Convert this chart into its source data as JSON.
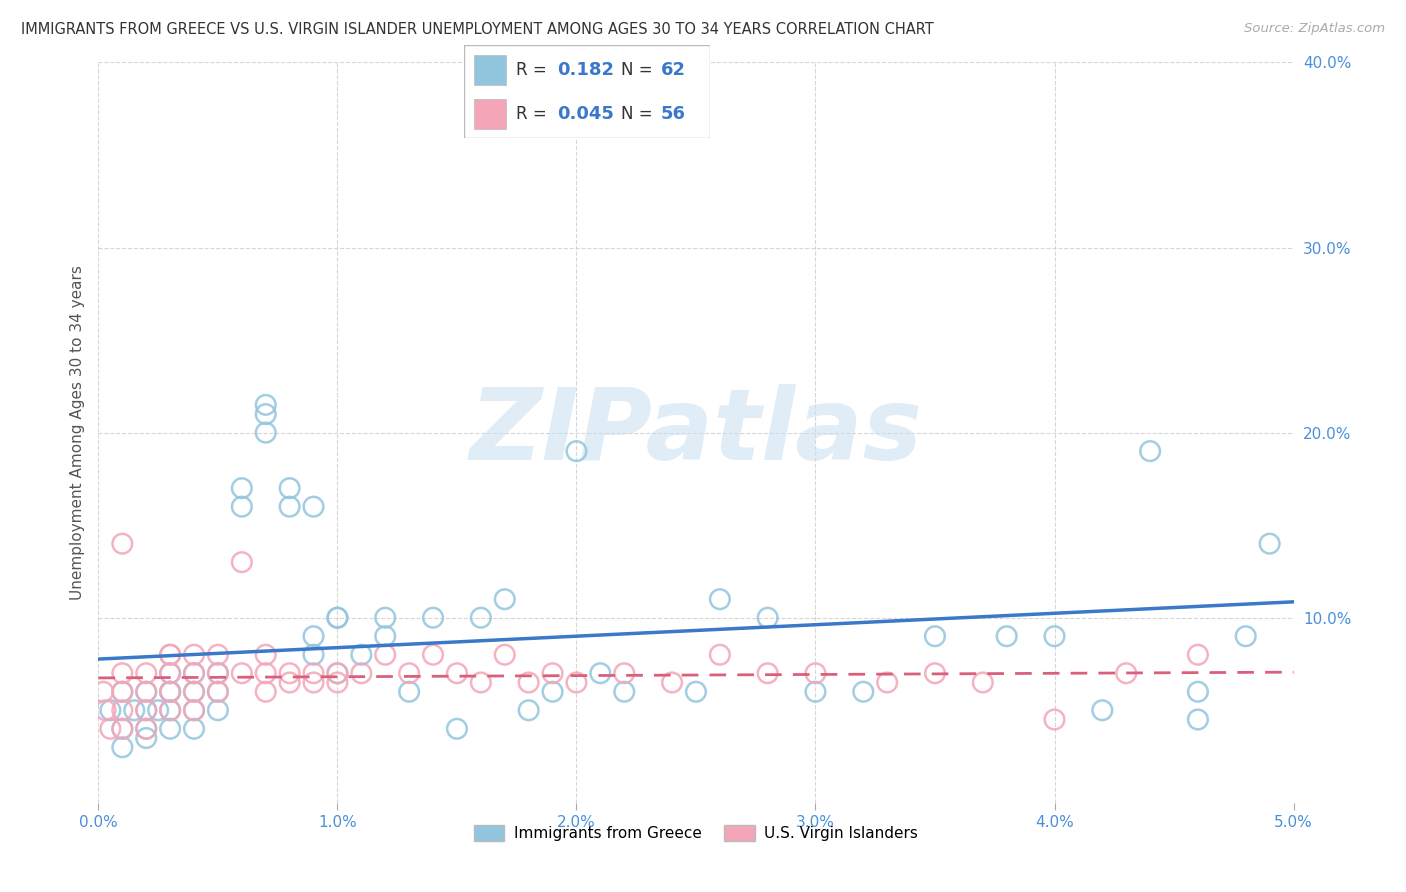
{
  "title": "IMMIGRANTS FROM GREECE VS U.S. VIRGIN ISLANDER UNEMPLOYMENT AMONG AGES 30 TO 34 YEARS CORRELATION CHART",
  "source": "Source: ZipAtlas.com",
  "ylabel": "Unemployment Among Ages 30 to 34 years",
  "xlim": [
    0.0,
    0.05
  ],
  "ylim": [
    0.0,
    0.4
  ],
  "xticks": [
    0.0,
    0.01,
    0.02,
    0.03,
    0.04,
    0.05
  ],
  "xticklabels": [
    "0.0%",
    "1.0%",
    "2.0%",
    "3.0%",
    "4.0%",
    "5.0%"
  ],
  "yticks": [
    0.0,
    0.1,
    0.2,
    0.3,
    0.4
  ],
  "yticklabels_right": [
    "",
    "10.0%",
    "20.0%",
    "30.0%",
    "40.0%"
  ],
  "blue_R": 0.182,
  "blue_N": 62,
  "pink_R": 0.045,
  "pink_N": 56,
  "blue_color": "#92c5de",
  "pink_color": "#f4a6b8",
  "blue_line_color": "#3a78c9",
  "pink_line_color": "#d9607a",
  "tick_color": "#4a90d9",
  "legend_label_blue": "Immigrants from Greece",
  "legend_label_pink": "U.S. Virgin Islanders",
  "watermark": "ZIPatlas",
  "blue_x": [
    0.0005,
    0.001,
    0.001,
    0.001,
    0.0015,
    0.002,
    0.002,
    0.002,
    0.002,
    0.0025,
    0.003,
    0.003,
    0.003,
    0.003,
    0.003,
    0.004,
    0.004,
    0.004,
    0.004,
    0.005,
    0.005,
    0.005,
    0.006,
    0.006,
    0.007,
    0.007,
    0.007,
    0.008,
    0.008,
    0.009,
    0.009,
    0.009,
    0.01,
    0.01,
    0.01,
    0.011,
    0.012,
    0.012,
    0.013,
    0.014,
    0.015,
    0.016,
    0.017,
    0.018,
    0.019,
    0.02,
    0.021,
    0.022,
    0.025,
    0.026,
    0.028,
    0.03,
    0.032,
    0.035,
    0.038,
    0.04,
    0.042,
    0.044,
    0.046,
    0.046,
    0.048,
    0.049
  ],
  "blue_y": [
    0.05,
    0.04,
    0.06,
    0.03,
    0.05,
    0.05,
    0.06,
    0.04,
    0.035,
    0.05,
    0.06,
    0.07,
    0.05,
    0.04,
    0.06,
    0.05,
    0.06,
    0.04,
    0.07,
    0.06,
    0.07,
    0.05,
    0.16,
    0.17,
    0.2,
    0.21,
    0.215,
    0.16,
    0.17,
    0.08,
    0.09,
    0.16,
    0.07,
    0.1,
    0.1,
    0.08,
    0.09,
    0.1,
    0.06,
    0.1,
    0.04,
    0.1,
    0.11,
    0.05,
    0.06,
    0.19,
    0.07,
    0.06,
    0.06,
    0.11,
    0.1,
    0.06,
    0.06,
    0.09,
    0.09,
    0.09,
    0.05,
    0.19,
    0.045,
    0.06,
    0.09,
    0.14
  ],
  "pink_x": [
    0.0002,
    0.0003,
    0.0005,
    0.001,
    0.001,
    0.001,
    0.001,
    0.001,
    0.002,
    0.002,
    0.002,
    0.002,
    0.003,
    0.003,
    0.003,
    0.003,
    0.003,
    0.004,
    0.004,
    0.004,
    0.004,
    0.005,
    0.005,
    0.005,
    0.006,
    0.006,
    0.007,
    0.007,
    0.007,
    0.008,
    0.008,
    0.009,
    0.009,
    0.01,
    0.01,
    0.011,
    0.012,
    0.013,
    0.014,
    0.015,
    0.016,
    0.017,
    0.018,
    0.019,
    0.02,
    0.022,
    0.024,
    0.026,
    0.028,
    0.03,
    0.033,
    0.035,
    0.037,
    0.04,
    0.043,
    0.046
  ],
  "pink_y": [
    0.06,
    0.05,
    0.04,
    0.14,
    0.06,
    0.05,
    0.04,
    0.07,
    0.06,
    0.07,
    0.05,
    0.04,
    0.08,
    0.07,
    0.06,
    0.05,
    0.08,
    0.06,
    0.07,
    0.05,
    0.08,
    0.07,
    0.06,
    0.08,
    0.13,
    0.07,
    0.08,
    0.06,
    0.07,
    0.065,
    0.07,
    0.065,
    0.07,
    0.065,
    0.07,
    0.07,
    0.08,
    0.07,
    0.08,
    0.07,
    0.065,
    0.08,
    0.065,
    0.07,
    0.065,
    0.07,
    0.065,
    0.08,
    0.07,
    0.07,
    0.065,
    0.07,
    0.065,
    0.045,
    0.07,
    0.08
  ]
}
